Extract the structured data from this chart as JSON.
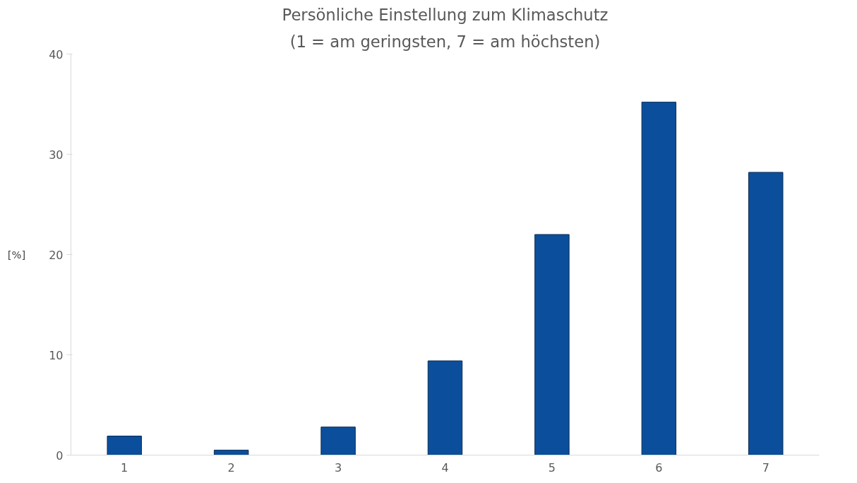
{
  "chart_data": {
    "type": "bar",
    "title": "Persönliche Einstellung zum Klimaschutz",
    "subtitle": "(1 = am geringsten, 7 = am höchsten)",
    "ylabel": "[%]",
    "categories": [
      "1",
      "2",
      "3",
      "4",
      "5",
      "6",
      "7"
    ],
    "values": [
      1.9,
      0.5,
      2.8,
      9.4,
      22.0,
      35.2,
      28.2
    ],
    "color": "#0b4f9c",
    "ylim": [
      0,
      40
    ],
    "yticks": [
      0,
      10,
      20,
      30,
      40
    ],
    "grid": false
  }
}
